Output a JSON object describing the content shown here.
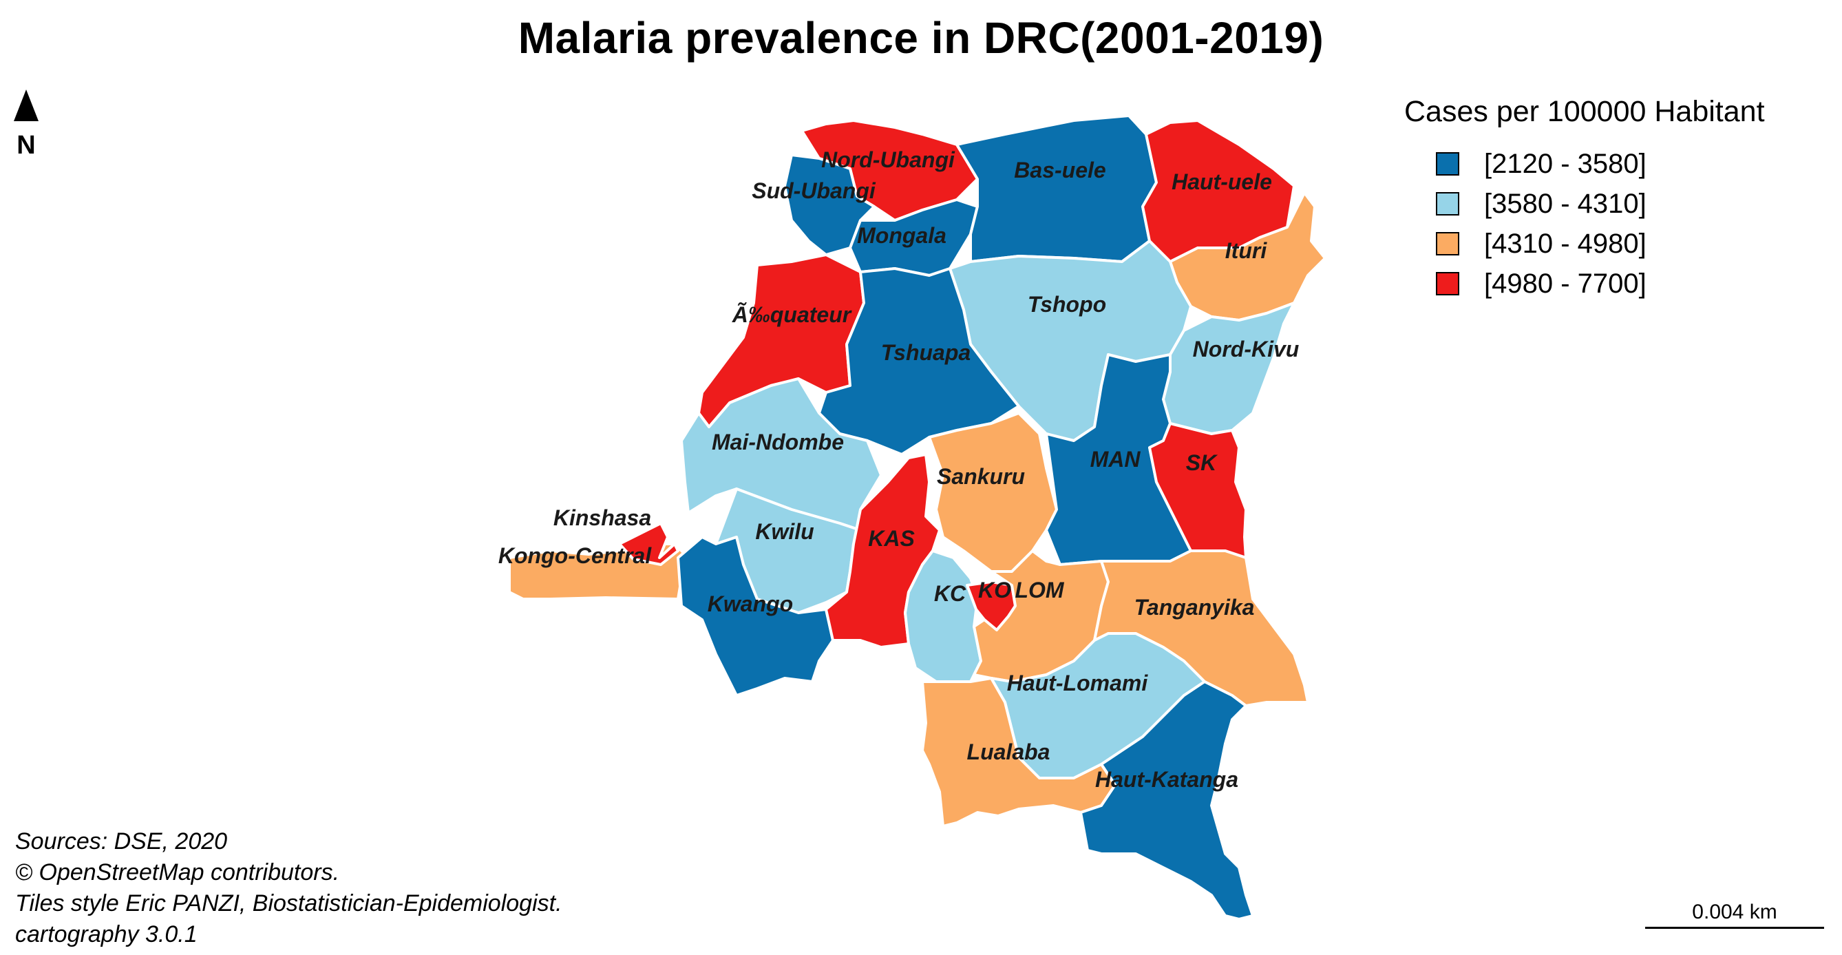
{
  "title": "Malaria prevalence in DRC(2001-2019)",
  "north_arrow": {
    "label": "N"
  },
  "legend": {
    "title": "Cases per 100000 Habitant",
    "classes": [
      {
        "label": "[2120 - 3580]",
        "color": "#0a70ad"
      },
      {
        "label": "[3580 - 4310]",
        "color": "#96d4e8"
      },
      {
        "label": "[4310 - 4980]",
        "color": "#fbab62"
      },
      {
        "label": "[4980 - 7700]",
        "color": "#ee1c1c"
      }
    ]
  },
  "provinces": {
    "nord_ubangi": {
      "label": "Nord-Ubangi",
      "class": 3
    },
    "sud_ubangi": {
      "label": "Sud-Ubangi",
      "class": 0
    },
    "mongala": {
      "label": "Mongala",
      "class": 0
    },
    "bas_uele": {
      "label": "Bas-uele",
      "class": 0
    },
    "haut_uele": {
      "label": "Haut-uele",
      "class": 3
    },
    "ituri": {
      "label": "Ituri",
      "class": 2
    },
    "equateur": {
      "label": "Ã‰quateur",
      "class": 3
    },
    "tshopo": {
      "label": "Tshopo",
      "class": 1
    },
    "tshuapa": {
      "label": "Tshuapa",
      "class": 0
    },
    "nord_kivu": {
      "label": "Nord-Kivu",
      "class": 1
    },
    "mai_ndombe": {
      "label": "Mai-Ndombe",
      "class": 1
    },
    "sankuru": {
      "label": "Sankuru",
      "class": 2
    },
    "maniema": {
      "label": "MAN",
      "class": 0
    },
    "sud_kivu": {
      "label": "SK",
      "class": 3
    },
    "kinshasa": {
      "label": "Kinshasa",
      "class": 3
    },
    "kongo_central": {
      "label": "Kongo-Central",
      "class": 2
    },
    "kwilu": {
      "label": "Kwilu",
      "class": 1
    },
    "kasai": {
      "label": "KAS",
      "class": 3
    },
    "kasai_central": {
      "label": "KC",
      "class": 1
    },
    "kasai_oriental": {
      "label": "KO",
      "class": 3
    },
    "lomami": {
      "label": "LOM",
      "class": 2
    },
    "tanganyika": {
      "label": "Tanganyika",
      "class": 2
    },
    "kwango": {
      "label": "Kwango",
      "class": 0
    },
    "haut_lomami": {
      "label": "Haut-Lomami",
      "class": 1
    },
    "lualaba": {
      "label": "Lualaba",
      "class": 2
    },
    "haut_katanga": {
      "label": "Haut-Katanga",
      "class": 0
    }
  },
  "sources": {
    "line1": "Sources: DSE, 2020",
    "line2": "© OpenStreetMap contributors.",
    "line3": "Tiles style Eric PANZI, Biostatistician-Epidemiologist.",
    "line4": "cartography 3.0.1"
  },
  "scale_bar": {
    "label": "0.004 km"
  }
}
